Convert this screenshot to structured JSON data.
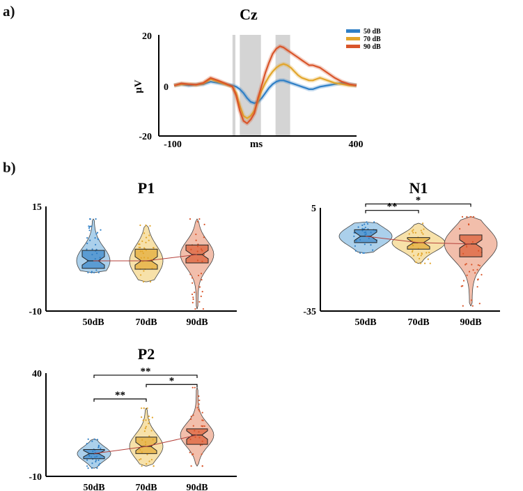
{
  "panel_labels": {
    "a": "a)",
    "b": "b)"
  },
  "colors": {
    "db50": "#2f7fc6",
    "db50_fill": "#9cc8e8",
    "db70": "#e2a52a",
    "db70_fill": "#f6dc9a",
    "db90": "#d9552a",
    "db90_fill": "#f0b39c",
    "shade": "#d4d4d4",
    "trend": "#b5403a"
  },
  "chart_data": [
    {
      "type": "line",
      "title": "Cz",
      "xlabel": "ms",
      "ylabel": "μV",
      "xlim": [
        -100,
        400
      ],
      "ylim": [
        -20,
        20
      ],
      "x_ticks": [
        "-100",
        "400"
      ],
      "y_ticks": [
        "20",
        "0",
        "-20"
      ],
      "shaded_windows_ms": [
        [
          60,
          68
        ],
        [
          80,
          138
        ],
        [
          178,
          218
        ]
      ],
      "x": [
        -100,
        -80,
        -60,
        -40,
        -20,
        0,
        20,
        40,
        60,
        70,
        80,
        90,
        100,
        110,
        120,
        130,
        140,
        150,
        160,
        170,
        180,
        190,
        200,
        210,
        220,
        230,
        240,
        250,
        260,
        270,
        280,
        290,
        300,
        320,
        340,
        360,
        380,
        400
      ],
      "series": [
        {
          "name": "50 dB",
          "color_key": "db50",
          "values": [
            0,
            0.5,
            0,
            0.3,
            0.5,
            1.5,
            1.0,
            0.5,
            0,
            -0.5,
            -1.5,
            -3,
            -5,
            -6.5,
            -7,
            -6.5,
            -5,
            -3,
            -1,
            0.5,
            1.5,
            2,
            2,
            1.5,
            1,
            0.5,
            0,
            -0.5,
            -1,
            -1.5,
            -1.5,
            -1,
            -0.5,
            0,
            0.5,
            1,
            0.5,
            0
          ]
        },
        {
          "name": "70 dB",
          "color_key": "db70",
          "values": [
            0,
            0.5,
            0.5,
            0.2,
            0.8,
            2.5,
            1.5,
            0.5,
            -0.5,
            -3,
            -8,
            -12,
            -13,
            -12,
            -10,
            -6,
            -2,
            1,
            3.5,
            5.5,
            7,
            8,
            8.5,
            8,
            7,
            5.5,
            4,
            3,
            2.5,
            2,
            2,
            2.5,
            3,
            2,
            1,
            0.5,
            0,
            0
          ]
        },
        {
          "name": "90 dB",
          "color_key": "db90",
          "values": [
            0,
            0.8,
            0.5,
            0.3,
            1.0,
            3.0,
            2.0,
            0.8,
            -0.5,
            -4,
            -10,
            -14,
            -15,
            -13.5,
            -11,
            -5,
            0,
            5,
            9,
            12.5,
            14.5,
            15.5,
            15,
            14,
            13,
            12,
            11,
            10,
            9,
            8,
            8,
            7.5,
            7,
            5,
            3,
            1.5,
            0.5,
            0
          ]
        }
      ]
    },
    {
      "type": "violin",
      "title": "P1",
      "categories": [
        "50dB",
        "70dB",
        "90dB"
      ],
      "ylim": [
        -10,
        15
      ],
      "y_ticks": [
        "15",
        "-10"
      ],
      "medians": [
        2.0,
        2.0,
        3.5
      ],
      "quartiles": [
        [
          0.2,
          4.5
        ],
        [
          0.0,
          4.8
        ],
        [
          1.5,
          5.8
        ]
      ],
      "ranges": [
        [
          -0.8,
          12.0
        ],
        [
          -3.0,
          10.5
        ],
        [
          -9.5,
          12.0
        ]
      ],
      "significance": []
    },
    {
      "type": "violin",
      "title": "N1",
      "categories": [
        "50dB",
        "70dB",
        "90dB"
      ],
      "ylim": [
        -35,
        5
      ],
      "y_ticks": [
        "5",
        "-35"
      ],
      "medians": [
        -6.0,
        -8.5,
        -9.0
      ],
      "quartiles": [
        [
          -8.5,
          -3.5
        ],
        [
          -11.0,
          -6.5
        ],
        [
          -14.0,
          -5.5
        ]
      ],
      "ranges": [
        [
          -12.5,
          -0.5
        ],
        [
          -16.5,
          -1.0
        ],
        [
          -33.0,
          1.5
        ]
      ],
      "significance": [
        {
          "from": 0,
          "to": 1,
          "label": "**",
          "value": 4.0
        },
        {
          "from": 0,
          "to": 2,
          "label": "*",
          "value": 6.5
        }
      ]
    },
    {
      "type": "violin",
      "title": "P2",
      "categories": [
        "50dB",
        "70dB",
        "90dB"
      ],
      "ylim": [
        -10,
        40
      ],
      "y_ticks": [
        "40",
        "-10"
      ],
      "medians": [
        1.0,
        4.5,
        10.0
      ],
      "quartiles": [
        [
          -1.5,
          3.0
        ],
        [
          1.0,
          9.0
        ],
        [
          5.5,
          13.0
        ]
      ],
      "ranges": [
        [
          -6.0,
          8.0
        ],
        [
          -5.0,
          23.0
        ],
        [
          -5.0,
          33.0
        ]
      ],
      "significance": [
        {
          "from": 0,
          "to": 1,
          "label": "**",
          "value": 27.5
        },
        {
          "from": 1,
          "to": 2,
          "label": "*",
          "value": 34.5
        },
        {
          "from": 0,
          "to": 2,
          "label": "**",
          "value": 39.0
        }
      ]
    }
  ]
}
